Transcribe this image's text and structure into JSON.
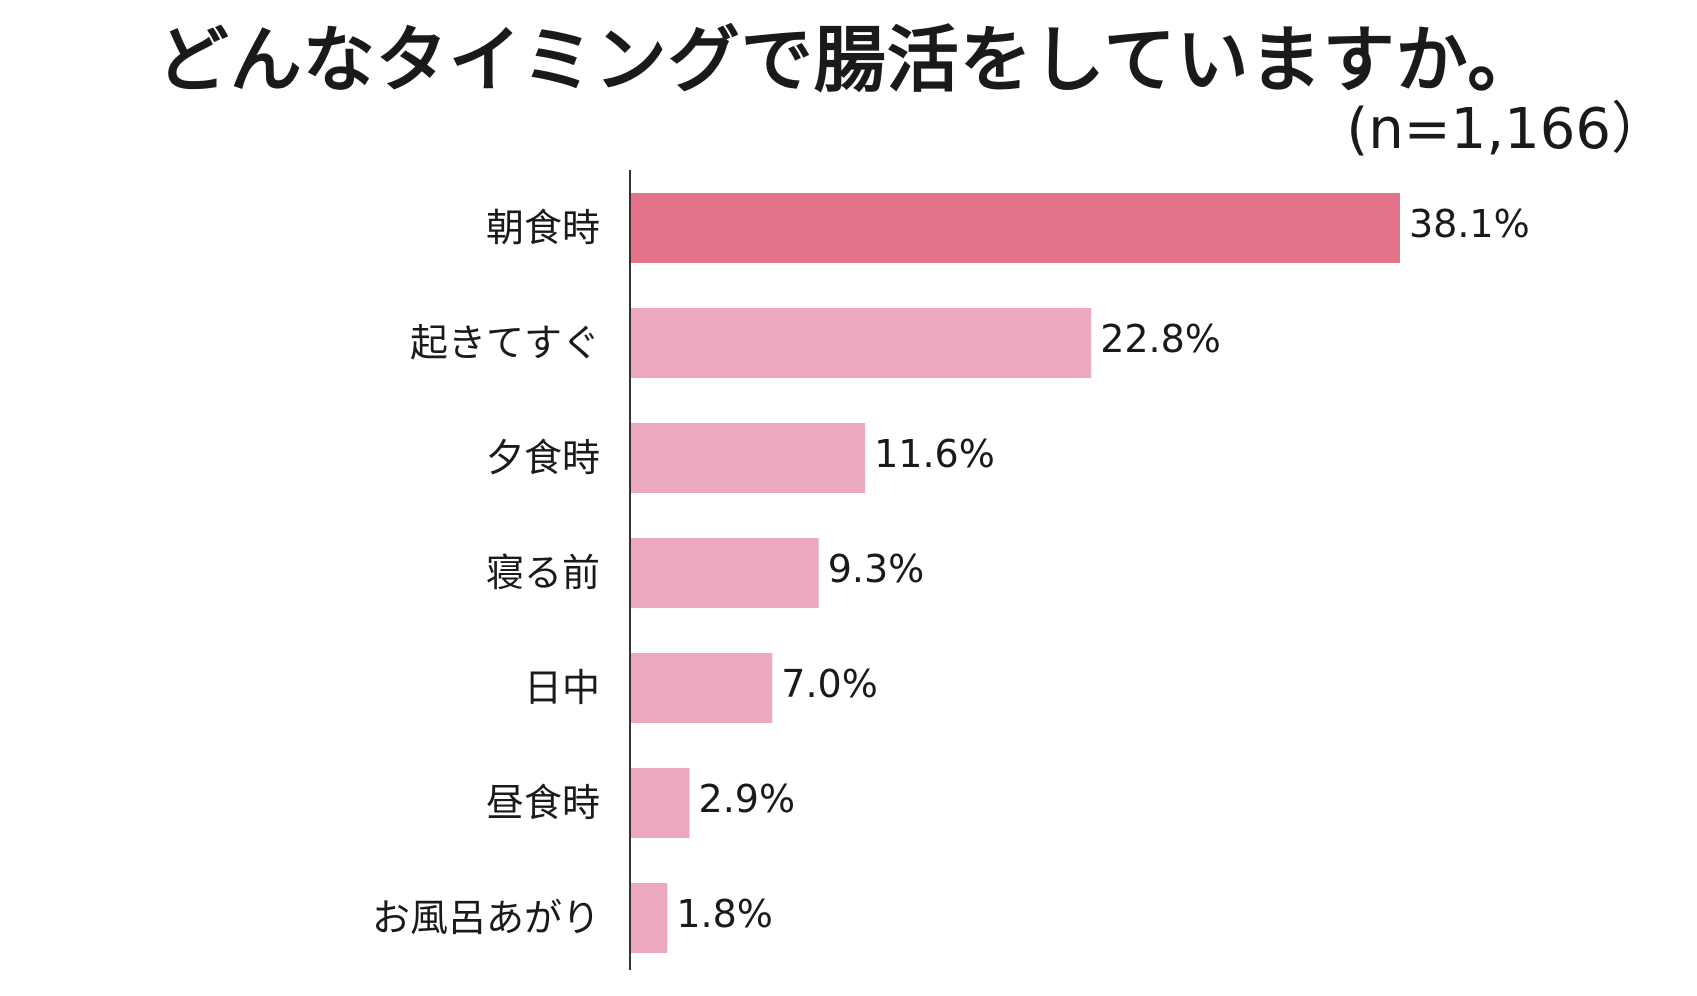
{
  "chart_data": {
    "type": "bar",
    "orientation": "horizontal",
    "title": "どんなタイミングで腸活をしていますか。",
    "subtitle": "(n=1,166）",
    "categories": [
      "朝食時",
      "起きてすぐ",
      "夕食時",
      "寝る前",
      "日中",
      "昼食時",
      "お風呂あがり"
    ],
    "values": [
      38.1,
      22.8,
      11.6,
      9.3,
      7.0,
      2.9,
      1.8
    ],
    "value_labels": [
      "38.1%",
      "22.8%",
      "11.6%",
      "9.3%",
      "7.0%",
      "2.9%",
      "1.8%"
    ],
    "unit": "%",
    "xlim": [
      0,
      38.1
    ],
    "grid": false,
    "legend": "none",
    "colors": {
      "highlight": "#e5738b",
      "default": "#eba8c0",
      "axis": "#333333"
    },
    "highlight_index": 0
  }
}
